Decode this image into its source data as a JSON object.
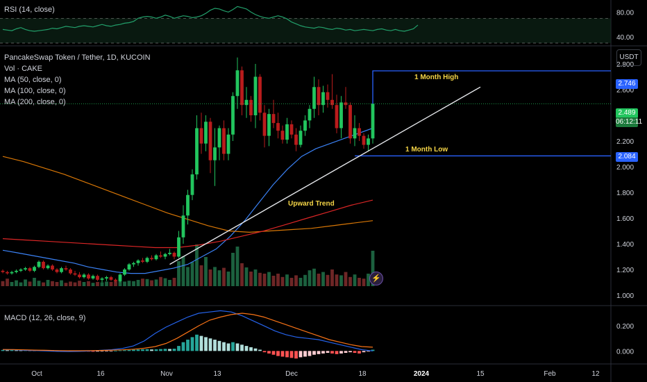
{
  "header": {
    "rsi_title": "RSI (14, close)",
    "symbol_title": "PancakeSwap Token / Tether, 1D, KUCOIN",
    "vol_title": "Vol · CAKE",
    "ma50_title": "MA (50, close, 0)",
    "ma100_title": "MA (100, close, 0)",
    "ma200_title": "MA (200, close, 0)",
    "macd_title": "MACD (12, 26, close, 9)",
    "currency": "USDT"
  },
  "colors": {
    "up": "#22c55e",
    "down": "#b91c1c",
    "ma50": "#3b82f6",
    "ma100": "#d97706",
    "ma200": "#dc2626",
    "rsi": "#22a06b",
    "level": "#2962ff",
    "macd": "#2563eb",
    "signal": "#f97316",
    "trend": "#e5e7eb",
    "note": "#f5d547"
  },
  "chart_data": [
    {
      "type": "line",
      "panel": "RSI",
      "ylim": [
        30,
        95
      ],
      "yticks": [
        "80.00",
        "40.00"
      ],
      "bands": [
        70,
        30
      ],
      "values": [
        52,
        51,
        50,
        53,
        55,
        52,
        50,
        49,
        50,
        51,
        52,
        54,
        53,
        55,
        57,
        56,
        55,
        57,
        58,
        57,
        56,
        58,
        60,
        58,
        57,
        59,
        60,
        62,
        63,
        65,
        70,
        72,
        73,
        72,
        70,
        72,
        75,
        73,
        70,
        72,
        74,
        73,
        71,
        72,
        74,
        78,
        83,
        86,
        85,
        82,
        80,
        84,
        89,
        87,
        85,
        80,
        76,
        73,
        71,
        70,
        72,
        74,
        72,
        69,
        64,
        61,
        58,
        56,
        55,
        54,
        56,
        55,
        53,
        52,
        54,
        53,
        51,
        52,
        50,
        51,
        52,
        51,
        50,
        52,
        53,
        51,
        50,
        52,
        50,
        49,
        51,
        53,
        59
      ]
    },
    {
      "type": "candlestick",
      "panel": "price",
      "ylim": [
        0.9,
        2.95
      ],
      "yticks": [
        "2.800",
        "2.600",
        "2.400",
        "2.200",
        "2.000",
        "1.800",
        "1.600",
        "1.400",
        "1.200",
        "1.000"
      ],
      "ohlc": [
        [
          1.19,
          1.2,
          1.17,
          1.18
        ],
        [
          1.18,
          1.19,
          1.16,
          1.17
        ],
        [
          1.17,
          1.19,
          1.16,
          1.18
        ],
        [
          1.18,
          1.2,
          1.17,
          1.19
        ],
        [
          1.19,
          1.21,
          1.18,
          1.2
        ],
        [
          1.2,
          1.22,
          1.19,
          1.21
        ],
        [
          1.21,
          1.22,
          1.18,
          1.19
        ],
        [
          1.19,
          1.23,
          1.18,
          1.22
        ],
        [
          1.22,
          1.27,
          1.21,
          1.26
        ],
        [
          1.26,
          1.27,
          1.2,
          1.21
        ],
        [
          1.21,
          1.24,
          1.2,
          1.23
        ],
        [
          1.23,
          1.24,
          1.19,
          1.2
        ],
        [
          1.2,
          1.21,
          1.17,
          1.18
        ],
        [
          1.18,
          1.22,
          1.17,
          1.21
        ],
        [
          1.21,
          1.23,
          1.19,
          1.2
        ],
        [
          1.2,
          1.21,
          1.16,
          1.17
        ],
        [
          1.17,
          1.19,
          1.15,
          1.16
        ],
        [
          1.16,
          1.18,
          1.13,
          1.14
        ],
        [
          1.14,
          1.17,
          1.13,
          1.16
        ],
        [
          1.16,
          1.17,
          1.12,
          1.13
        ],
        [
          1.13,
          1.16,
          1.12,
          1.15
        ],
        [
          1.15,
          1.16,
          1.11,
          1.12
        ],
        [
          1.12,
          1.14,
          1.1,
          1.13
        ],
        [
          1.13,
          1.15,
          1.11,
          1.14
        ],
        [
          1.14,
          1.15,
          1.11,
          1.12
        ],
        [
          1.12,
          1.13,
          1.1,
          1.11
        ],
        [
          1.11,
          1.17,
          1.1,
          1.16
        ],
        [
          1.16,
          1.21,
          1.15,
          1.2
        ],
        [
          1.2,
          1.25,
          1.19,
          1.24
        ],
        [
          1.24,
          1.26,
          1.22,
          1.25
        ],
        [
          1.25,
          1.28,
          1.23,
          1.27
        ],
        [
          1.27,
          1.29,
          1.25,
          1.26
        ],
        [
          1.26,
          1.3,
          1.25,
          1.29
        ],
        [
          1.29,
          1.31,
          1.27,
          1.28
        ],
        [
          1.28,
          1.32,
          1.27,
          1.31
        ],
        [
          1.31,
          1.34,
          1.29,
          1.3
        ],
        [
          1.3,
          1.33,
          1.28,
          1.32
        ],
        [
          1.32,
          1.36,
          1.31,
          1.33
        ],
        [
          1.33,
          1.34,
          1.28,
          1.3
        ],
        [
          1.3,
          1.5,
          1.29,
          1.45
        ],
        [
          1.45,
          1.7,
          1.4,
          1.62
        ],
        [
          1.62,
          1.82,
          1.55,
          1.78
        ],
        [
          1.78,
          1.98,
          1.74,
          1.94
        ],
        [
          1.94,
          2.4,
          1.9,
          2.3
        ],
        [
          2.3,
          2.42,
          2.1,
          2.18
        ],
        [
          2.18,
          2.4,
          2.12,
          2.35
        ],
        [
          2.35,
          2.38,
          1.95,
          2.05
        ],
        [
          2.05,
          2.3,
          1.85,
          2.15
        ],
        [
          2.15,
          2.32,
          2.05,
          2.3
        ],
        [
          2.3,
          2.36,
          2.05,
          2.1
        ],
        [
          2.1,
          2.3,
          2.05,
          2.25
        ],
        [
          2.25,
          2.58,
          2.2,
          2.55
        ],
        [
          2.55,
          2.85,
          2.45,
          2.75
        ],
        [
          2.75,
          2.78,
          2.4,
          2.48
        ],
        [
          2.48,
          2.62,
          2.38,
          2.52
        ],
        [
          2.52,
          2.55,
          2.35,
          2.4
        ],
        [
          2.4,
          2.8,
          2.3,
          2.7
        ],
        [
          2.7,
          2.72,
          2.36,
          2.42
        ],
        [
          2.42,
          2.48,
          2.15,
          2.24
        ],
        [
          2.24,
          2.45,
          2.16,
          2.41
        ],
        [
          2.41,
          2.52,
          2.3,
          2.34
        ],
        [
          2.34,
          2.42,
          2.22,
          2.28
        ],
        [
          2.28,
          2.32,
          2.18,
          2.21
        ],
        [
          2.21,
          2.38,
          2.18,
          2.33
        ],
        [
          2.33,
          2.36,
          2.22,
          2.25
        ],
        [
          2.25,
          2.3,
          2.12,
          2.17
        ],
        [
          2.17,
          2.32,
          2.15,
          2.28
        ],
        [
          2.28,
          2.4,
          2.24,
          2.36
        ],
        [
          2.36,
          2.48,
          2.3,
          2.45
        ],
        [
          2.45,
          2.7,
          2.38,
          2.62
        ],
        [
          2.62,
          2.68,
          2.4,
          2.48
        ],
        [
          2.48,
          2.63,
          2.42,
          2.58
        ],
        [
          2.58,
          2.64,
          2.46,
          2.52
        ],
        [
          2.52,
          2.72,
          2.45,
          2.48
        ],
        [
          2.48,
          2.56,
          2.26,
          2.3
        ],
        [
          2.3,
          2.55,
          2.22,
          2.5
        ],
        [
          2.5,
          2.62,
          2.45,
          2.48
        ],
        [
          2.48,
          2.5,
          2.18,
          2.22
        ],
        [
          2.22,
          2.4,
          2.16,
          2.3
        ],
        [
          2.3,
          2.34,
          2.2,
          2.24
        ],
        [
          2.24,
          2.26,
          2.14,
          2.17
        ],
        [
          2.17,
          2.25,
          2.12,
          2.22
        ],
        [
          2.22,
          2.5,
          2.18,
          2.49
        ]
      ]
    },
    {
      "type": "bar",
      "panel": "volume",
      "values": [
        12,
        18,
        10,
        14,
        9,
        16,
        11,
        20,
        13,
        9,
        15,
        12,
        10,
        14,
        8,
        11,
        9,
        13,
        10,
        12,
        8,
        10,
        9,
        11,
        10,
        12,
        14,
        11,
        13,
        12,
        15,
        18,
        17,
        14,
        16,
        22,
        19,
        15,
        20,
        60,
        72,
        46,
        58,
        100,
        50,
        70,
        40,
        46,
        38,
        44,
        35,
        80,
        95,
        55,
        45,
        35,
        40,
        32,
        30,
        34,
        25,
        30,
        22,
        28,
        20,
        26,
        20,
        27,
        38,
        42,
        30,
        34,
        27,
        40,
        28,
        26,
        34,
        22,
        28,
        20,
        18,
        30,
        85
      ]
    },
    {
      "type": "line",
      "panel": "moving-averages",
      "series": [
        {
          "name": "MA (50, close, 0)",
          "start": 1.35,
          "values": [
            1.35,
            1.33,
            1.31,
            1.29,
            1.27,
            1.25,
            1.22,
            1.2,
            1.18,
            1.17,
            1.17,
            1.19,
            1.21,
            1.24,
            1.3,
            1.36,
            1.46,
            1.58,
            1.72,
            1.86,
            1.98,
            2.08,
            2.14,
            2.18,
            2.22,
            2.26,
            2.3
          ]
        },
        {
          "name": "MA (100, close, 0)",
          "values": [
            2.08,
            2.04,
            1.99,
            1.94,
            1.88,
            1.82,
            1.76,
            1.7,
            1.64,
            1.59,
            1.54,
            1.5,
            1.49,
            1.5,
            1.51,
            1.52,
            1.54,
            1.56,
            1.58
          ]
        },
        {
          "name": "MA (200, close, 0)",
          "values": [
            1.44,
            1.43,
            1.42,
            1.41,
            1.4,
            1.39,
            1.38,
            1.37,
            1.37,
            1.39,
            1.42,
            1.46,
            1.5,
            1.55,
            1.6,
            1.65,
            1.7,
            1.74
          ]
        }
      ]
    },
    {
      "type": "bar",
      "panel": "MACD",
      "ylim": [
        -0.07,
        0.35
      ],
      "yticks": [
        "0.200",
        "0.000"
      ],
      "histogram": [
        0.008,
        0.006,
        0.007,
        0.005,
        0.004,
        0.006,
        0.005,
        0.004,
        0.006,
        0.008,
        0.007,
        0.006,
        0.005,
        0.004,
        0.003,
        0.002,
        -0.002,
        -0.003,
        -0.004,
        -0.005,
        -0.006,
        -0.005,
        -0.004,
        -0.003,
        -0.002,
        0.002,
        0.004,
        0.006,
        0.008,
        0.01,
        0.012,
        0.013,
        0.014,
        0.012,
        0.013,
        0.015,
        0.017,
        0.016,
        0.018,
        0.04,
        0.07,
        0.09,
        0.11,
        0.13,
        0.12,
        0.11,
        0.1,
        0.09,
        0.08,
        0.07,
        0.06,
        0.07,
        0.06,
        0.05,
        0.04,
        0.03,
        0.02,
        0.01,
        -0.01,
        -0.02,
        -0.03,
        -0.04,
        -0.045,
        -0.05,
        -0.055,
        -0.06,
        -0.05,
        -0.045,
        -0.04,
        -0.03,
        -0.025,
        -0.02,
        -0.015,
        -0.02,
        -0.025,
        -0.02,
        -0.015,
        -0.01,
        -0.015,
        -0.02,
        -0.01,
        -0.005,
        0.01
      ],
      "macd": [
        0.01,
        0.01,
        0.005,
        0.003,
        0.0,
        -0.003,
        -0.005,
        -0.003,
        0.0,
        0.005,
        0.01,
        0.02,
        0.04,
        0.08,
        0.14,
        0.19,
        0.23,
        0.27,
        0.3,
        0.31,
        0.32,
        0.31,
        0.28,
        0.24,
        0.2,
        0.16,
        0.13,
        0.11,
        0.1,
        0.09,
        0.07,
        0.05,
        0.03,
        0.01,
        0.0
      ],
      "signal": [
        0.012,
        0.011,
        0.009,
        0.007,
        0.005,
        0.003,
        0.002,
        0.002,
        0.003,
        0.004,
        0.006,
        0.009,
        0.014,
        0.022,
        0.035,
        0.06,
        0.1,
        0.15,
        0.2,
        0.245,
        0.27,
        0.29,
        0.3,
        0.29,
        0.27,
        0.24,
        0.21,
        0.18,
        0.15,
        0.12,
        0.09,
        0.07,
        0.05,
        0.035,
        0.03
      ]
    }
  ],
  "annotations": {
    "month_high_label": "1 Month High",
    "month_low_label": "1 Month Low",
    "trend_label": "Upward Trend",
    "month_high_value": 2.746,
    "month_low_value": 2.084,
    "month_high_tag": "2.746",
    "month_low_tag": "2.084",
    "last_price_tag": "2.489",
    "countdown_tag": "06:12:11"
  },
  "time_axis": {
    "labels": [
      "Oct",
      "16",
      "Nov",
      "13",
      "Dec",
      "18",
      "2024",
      "15",
      "Feb",
      "12"
    ]
  }
}
